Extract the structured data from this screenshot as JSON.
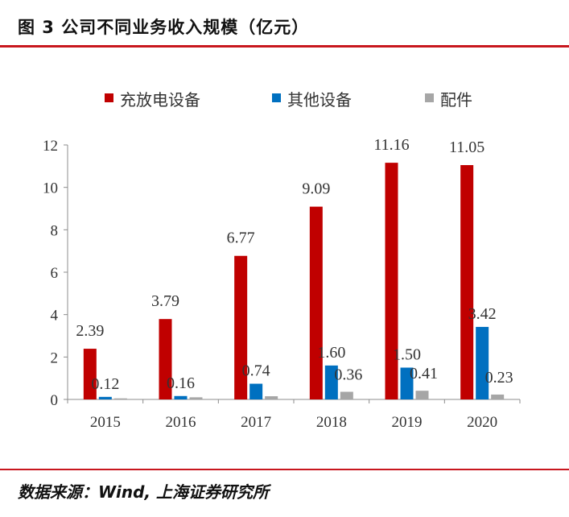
{
  "figure": {
    "title": "图 3  公司不同业务收入规模（亿元）",
    "source": "数据来源：Wind, 上海证券研究所"
  },
  "chart_data": {
    "type": "bar",
    "title": "",
    "xlabel": "",
    "ylabel": "",
    "categories": [
      "2015",
      "2016",
      "2017",
      "2018",
      "2019",
      "2020"
    ],
    "ylim": [
      0,
      12
    ],
    "yticks": [
      0,
      2,
      4,
      6,
      8,
      10,
      12
    ],
    "grid": false,
    "legend_position": "top",
    "series": [
      {
        "name": "充放电设备",
        "color": "#c00000",
        "values": [
          2.39,
          3.79,
          6.77,
          9.09,
          11.16,
          11.05
        ],
        "labels": [
          "2.39",
          "3.79",
          "6.77",
          "9.09",
          "11.16",
          "11.05"
        ]
      },
      {
        "name": "其他设备",
        "color": "#0070c0",
        "values": [
          0.12,
          0.16,
          0.74,
          1.6,
          1.5,
          3.42
        ],
        "labels": [
          "0.12",
          "0.16",
          "0.74",
          "1.60",
          "1.50",
          "3.42"
        ]
      },
      {
        "name": "配件",
        "color": "#a6a6a6",
        "values": [
          0.05,
          0.1,
          0.15,
          0.36,
          0.41,
          0.23
        ],
        "labels": [
          "",
          "",
          "",
          "0.36",
          "0.41",
          "0.23"
        ]
      }
    ]
  }
}
